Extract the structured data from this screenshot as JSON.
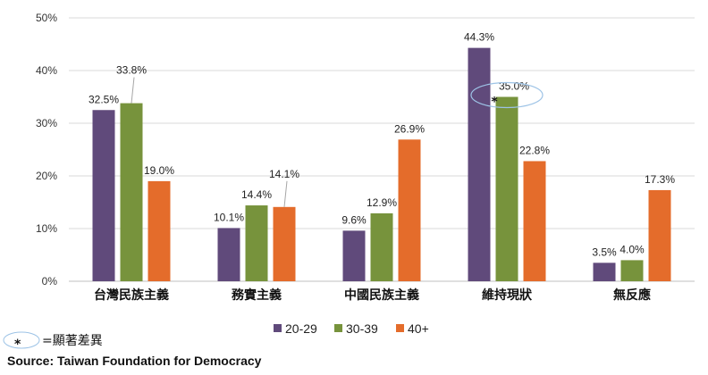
{
  "chart_data": {
    "type": "bar",
    "categories": [
      "台灣民族主義",
      "務實主義",
      "中國民族主義",
      "維持現狀",
      "無反應"
    ],
    "series": [
      {
        "name": "20-29",
        "color": "#604a7b",
        "values": [
          32.5,
          10.1,
          9.6,
          44.3,
          3.5
        ],
        "labels": [
          "32.5%",
          "10.1%",
          "9.6%",
          "44.3%",
          "3.5%"
        ]
      },
      {
        "name": "30-39",
        "color": "#77933c",
        "values": [
          33.8,
          14.4,
          12.9,
          35.0,
          4.0
        ],
        "labels": [
          "33.8%",
          "14.4%",
          "12.9%",
          "35.0%",
          "4.0%"
        ]
      },
      {
        "name": "40+",
        "color": "#e46c2b",
        "values": [
          19.0,
          14.1,
          26.9,
          22.8,
          17.3
        ],
        "labels": [
          "19.0%",
          "14.1%",
          "26.9%",
          "22.8%",
          "17.3%"
        ]
      }
    ],
    "ylim": [
      0,
      50
    ],
    "yticks": [
      "0%",
      "10%",
      "20%",
      "30%",
      "40%",
      "50%"
    ],
    "grid": true,
    "legend_position": "bottom",
    "highlight": {
      "category_index": 3,
      "series_index": 1,
      "marker": "*"
    }
  },
  "annotation": {
    "symbol": "*",
    "text": "=顯著差異"
  },
  "source": "Source: Taiwan Foundation for Democracy"
}
